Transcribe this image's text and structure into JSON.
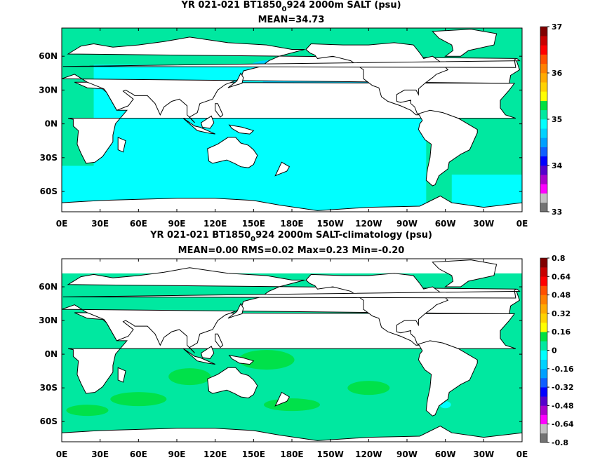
{
  "chart_data": [
    {
      "type": "heatmap",
      "title_pre": "YR 021-021 BT1850",
      "title_sub": "0",
      "title_post": "924 2000m SALT (psu)",
      "subtitle": "MEAN=34.73",
      "x_ticks": [
        "0E",
        "30E",
        "60E",
        "90E",
        "120E",
        "150E",
        "180E",
        "150W",
        "120W",
        "90W",
        "60W",
        "30W",
        "0E"
      ],
      "y_ticks": [
        "60N",
        "30N",
        "0N",
        "30S",
        "60S"
      ],
      "y_tick_values": [
        60,
        30,
        0,
        -30,
        -60
      ],
      "xlim": [
        0,
        360
      ],
      "ylim": [
        -78,
        85
      ],
      "colorbar": {
        "labels": [
          "37",
          "36",
          "35",
          "34",
          "33"
        ],
        "label_values": [
          37,
          36,
          35,
          34,
          33
        ],
        "min": 33,
        "max": 37,
        "colors": [
          "#737373",
          "#c0c0c0",
          "#ff00ff",
          "#aa00cc",
          "#5500cc",
          "#0000ff",
          "#0f5fff",
          "#00a0ff",
          "#00d2ff",
          "#00ffff",
          "#00e8a0",
          "#00e040",
          "#ffff00",
          "#ffd200",
          "#ffaa00",
          "#ff8000",
          "#ff5000",
          "#ff0000",
          "#c80000",
          "#800000"
        ]
      },
      "ocean_regions": [
        {
          "name": "pacific-indian-fresher",
          "color": "#00ffff"
        },
        {
          "name": "north-pacific-fresh",
          "color": "#00d2ff"
        },
        {
          "name": "atlantic-saltier",
          "color": "#00e8a0"
        }
      ]
    },
    {
      "type": "heatmap",
      "title_pre": "YR 021-021 BT1850",
      "title_sub": "0",
      "title_post": "924 2000m SALT-climatology (psu)",
      "subtitle": "MEAN=0.00   RMS=0.02   Max=0.23   Min=-0.20",
      "x_ticks": [
        "0E",
        "30E",
        "60E",
        "90E",
        "120E",
        "150E",
        "180E",
        "150W",
        "120W",
        "90W",
        "60W",
        "30W",
        "0E"
      ],
      "y_ticks": [
        "60N",
        "30N",
        "0N",
        "30S",
        "60S"
      ],
      "y_tick_values": [
        60,
        30,
        0,
        -30,
        -60
      ],
      "xlim": [
        0,
        360
      ],
      "ylim": [
        -78,
        85
      ],
      "colorbar": {
        "labels": [
          "0.8",
          "0.64",
          "0.48",
          "0.32",
          "0.16",
          "0",
          "-0.16",
          "-0.32",
          "-0.48",
          "-0.64",
          "-0.8"
        ],
        "label_values": [
          0.8,
          0.64,
          0.48,
          0.32,
          0.16,
          0,
          -0.16,
          -0.32,
          -0.48,
          -0.64,
          -0.8
        ],
        "min": -0.8,
        "max": 0.8,
        "colors": [
          "#737373",
          "#c0c0c0",
          "#ff00ff",
          "#aa00cc",
          "#5500cc",
          "#0000ff",
          "#0f5fff",
          "#00a0ff",
          "#00d2ff",
          "#00ffff",
          "#00e8a0",
          "#00e040",
          "#ffff00",
          "#ffd200",
          "#ffaa00",
          "#ff8000",
          "#ff5000",
          "#ff0000",
          "#c80000",
          "#800000"
        ]
      },
      "ocean_regions": [
        {
          "name": "near-zero-anomaly",
          "color": "#00e8a0"
        },
        {
          "name": "slight-positive",
          "color": "#00e040"
        },
        {
          "name": "slight-negative",
          "color": "#00ffff"
        }
      ]
    }
  ]
}
